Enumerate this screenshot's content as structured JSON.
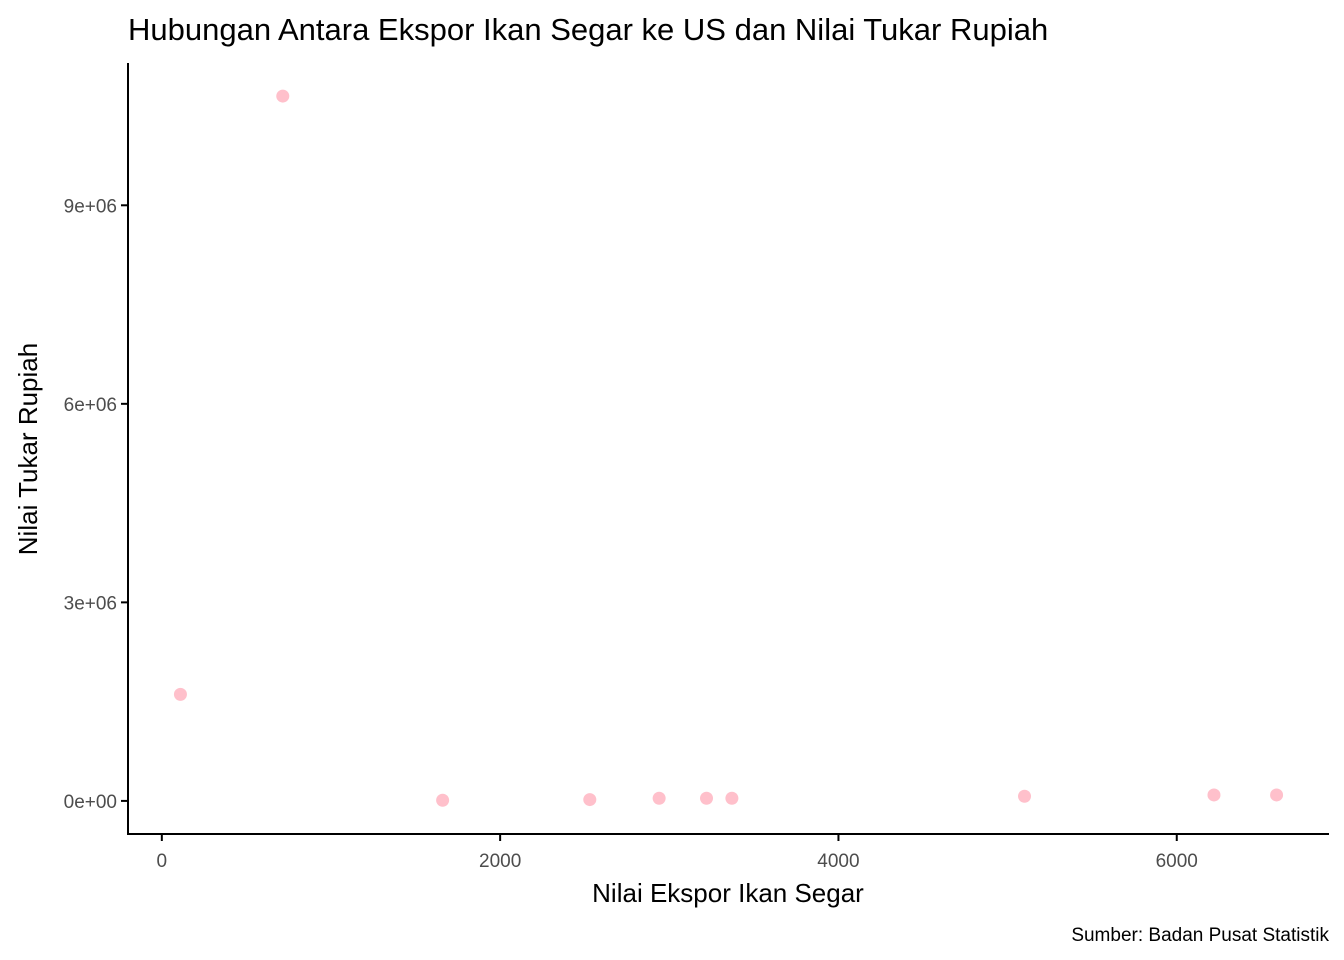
{
  "chart_data": {
    "type": "scatter",
    "title": "Hubungan Antara Ekspor Ikan Segar ke US dan Nilai Tukar Rupiah",
    "xlabel": "Nilai Ekspor Ikan Segar",
    "ylabel": "Nilai Tukar Rupiah",
    "caption": "Sumber: Badan Pusat Statistik",
    "xlim": [
      -200,
      6900
    ],
    "ylim": [
      -500000,
      11150000
    ],
    "x_ticks": [
      0,
      2000,
      4000,
      6000
    ],
    "x_tick_labels": [
      "0",
      "2000",
      "4000",
      "6000"
    ],
    "y_ticks": [
      0,
      3000000,
      6000000,
      9000000
    ],
    "y_tick_labels": [
      "0e+00",
      "3e+06",
      "6e+06",
      "9e+06"
    ],
    "grid": false,
    "point_color": "#FFC0CB",
    "axis_color": "#000000",
    "points": [
      {
        "x": 110,
        "y": 1610000
      },
      {
        "x": 715,
        "y": 10650000
      },
      {
        "x": 1660,
        "y": 10000
      },
      {
        "x": 2530,
        "y": 20000
      },
      {
        "x": 2940,
        "y": 40000
      },
      {
        "x": 3220,
        "y": 40000
      },
      {
        "x": 3370,
        "y": 40000
      },
      {
        "x": 5100,
        "y": 70000
      },
      {
        "x": 6220,
        "y": 90000
      },
      {
        "x": 6590,
        "y": 90000
      }
    ]
  }
}
